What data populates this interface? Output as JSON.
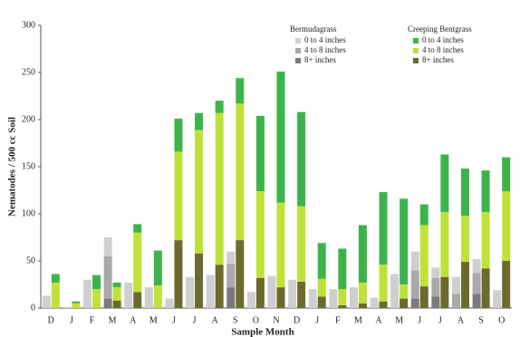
{
  "chart_data": {
    "type": "stacked_bar",
    "y_label": "Nematodes / 500 cc Soil",
    "x_label": "Sample Month",
    "categories": [
      "D",
      "J",
      "F",
      "M",
      "A",
      "M",
      "J",
      "J",
      "A",
      "S",
      "O",
      "N",
      "D",
      "J",
      "F",
      "M",
      "A",
      "M",
      "J",
      "J",
      "A",
      "S",
      "O"
    ],
    "ylim": [
      0,
      300
    ],
    "yticks": [
      0,
      50,
      100,
      150,
      200,
      250,
      300
    ],
    "legend_groups": [
      "Bermudagrass",
      "Creeping Bentgrass"
    ],
    "series": [
      {
        "name": "8+ inches",
        "stack": "Bermudagrass",
        "color": "#7a7a7a",
        "values": [
          0,
          0,
          0,
          10,
          0,
          0,
          0,
          0,
          0,
          22,
          0,
          0,
          0,
          0,
          0,
          0,
          0,
          0,
          10,
          12,
          0,
          15,
          0
        ]
      },
      {
        "name": "4 to 8 inches",
        "stack": "Bermudagrass",
        "color": "#a9a9a9",
        "values": [
          0,
          0,
          0,
          45,
          0,
          0,
          0,
          0,
          0,
          25,
          0,
          0,
          0,
          0,
          0,
          0,
          0,
          0,
          30,
          20,
          15,
          22,
          0
        ]
      },
      {
        "name": "0 to 4 inches",
        "stack": "Bermudagrass",
        "color": "#cfcfcf",
        "values": [
          13,
          1,
          30,
          20,
          27,
          22,
          10,
          33,
          35,
          13,
          17,
          34,
          30,
          20,
          20,
          22,
          11,
          36,
          20,
          11,
          18,
          15,
          19
        ]
      },
      {
        "name": "8+ inches",
        "stack": "Creeping Bentgrass",
        "color": "#6b6b2e",
        "values": [
          0,
          0,
          0,
          8,
          17,
          0,
          72,
          58,
          46,
          72,
          32,
          22,
          28,
          12,
          3,
          5,
          7,
          10,
          23,
          33,
          49,
          42,
          50
        ]
      },
      {
        "name": "4 to 8 inches",
        "stack": "Creeping Bentgrass",
        "color": "#bfe23a",
        "values": [
          27,
          5,
          20,
          14,
          63,
          24,
          94,
          131,
          161,
          145,
          92,
          90,
          80,
          19,
          17,
          22,
          39,
          15,
          65,
          69,
          49,
          60,
          74
        ]
      },
      {
        "name": "0 to 4 inches",
        "stack": "Creeping Bentgrass",
        "color": "#3cb44b",
        "values": [
          9,
          2,
          15,
          5,
          9,
          37,
          35,
          18,
          13,
          27,
          80,
          139,
          100,
          38,
          43,
          61,
          77,
          91,
          22,
          61,
          50,
          44,
          36
        ]
      }
    ]
  }
}
